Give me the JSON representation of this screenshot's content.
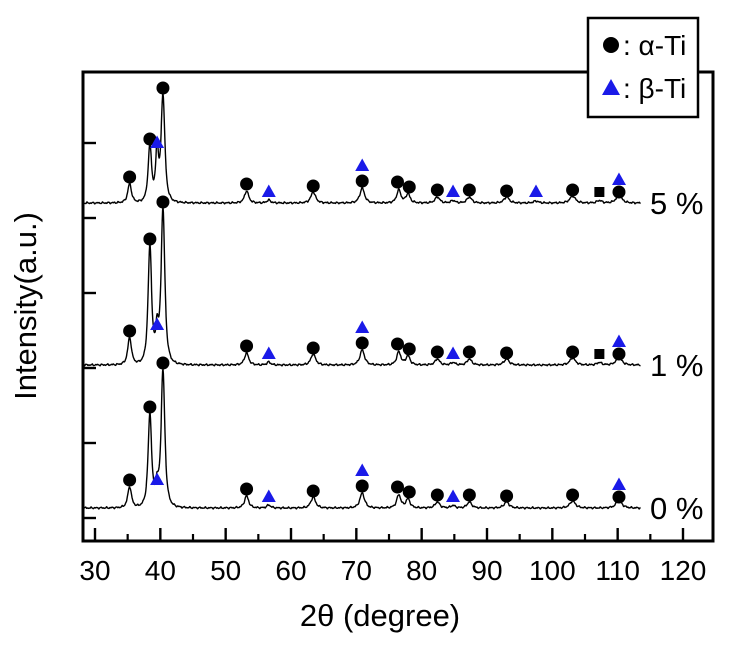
{
  "chart_data": {
    "type": "line",
    "title": "",
    "xlabel": "2θ (degree)",
    "ylabel": "Intensity(a.u.)",
    "x_ticks": [
      30,
      40,
      50,
      60,
      70,
      80,
      90,
      100,
      110,
      120
    ],
    "x_minor_ticks": [
      35,
      45,
      55,
      65,
      75,
      85,
      95,
      105,
      115
    ],
    "xlim": [
      28.2,
      124.6
    ],
    "y_axis": "arbitrary units (no numeric labels)",
    "grid": false,
    "line_color": "#000000",
    "alpha_color": "#000000",
    "beta_color": "#1a1ae8",
    "legend_position": "top-right",
    "legend": [
      {
        "marker": "circle",
        "color": "#000000",
        "text": ": α-Ti"
      },
      {
        "marker": "triangle",
        "color": "#1a1ae8",
        "text": ": β-Ti"
      }
    ],
    "marker_kinds": {
      "c": "alpha-Ti circle",
      "t": "beta-Ti triangle",
      "s": "unassigned square"
    },
    "peak_format": [
      "two_theta_deg",
      "intensity_au",
      "width_deg"
    ],
    "marker_format": [
      "two_theta_deg",
      "height_au_above_baseline",
      "kind"
    ],
    "series": [
      {
        "name": "5 %",
        "id": "5pct",
        "peaks": [
          [
            35.3,
            19,
            0.4
          ],
          [
            38.4,
            56,
            0.38
          ],
          [
            39.5,
            50,
            0.3
          ],
          [
            40.4,
            107,
            0.4
          ],
          [
            53.2,
            12,
            0.45
          ],
          [
            56.6,
            3,
            0.4
          ],
          [
            63.4,
            11,
            0.5
          ],
          [
            70.9,
            15,
            0.5
          ],
          [
            76.5,
            13,
            0.45
          ],
          [
            77.9,
            9,
            0.45
          ],
          [
            82.4,
            6,
            0.5
          ],
          [
            84.8,
            2.5,
            0.45
          ],
          [
            87.3,
            6,
            0.5
          ],
          [
            93.0,
            6,
            0.55
          ],
          [
            97.5,
            2,
            0.5
          ],
          [
            103.1,
            7,
            0.6
          ],
          [
            107.2,
            2.5,
            0.5
          ],
          [
            110.2,
            8,
            0.6
          ]
        ],
        "markers": [
          [
            35.3,
            26,
            "c"
          ],
          [
            38.4,
            64,
            "c"
          ],
          [
            39.5,
            60,
            "t"
          ],
          [
            40.4,
            115,
            "c"
          ],
          [
            53.2,
            19,
            "c"
          ],
          [
            56.6,
            11,
            "t"
          ],
          [
            63.4,
            17,
            "c"
          ],
          [
            70.9,
            22,
            "c"
          ],
          [
            70.9,
            37,
            "t"
          ],
          [
            76.3,
            21,
            "c"
          ],
          [
            78.1,
            16,
            "c"
          ],
          [
            82.4,
            13,
            "c"
          ],
          [
            84.8,
            11,
            "t"
          ],
          [
            87.3,
            13,
            "c"
          ],
          [
            93.0,
            12,
            "c"
          ],
          [
            97.5,
            11,
            "t"
          ],
          [
            103.1,
            13,
            "c"
          ],
          [
            107.2,
            11,
            "s"
          ],
          [
            110.2,
            11,
            "c"
          ],
          [
            110.2,
            23,
            "t"
          ]
        ]
      },
      {
        "name": "1 %",
        "id": "1pct",
        "peaks": [
          [
            35.3,
            27,
            0.4
          ],
          [
            38.4,
            118,
            0.38
          ],
          [
            39.5,
            30,
            0.3
          ],
          [
            40.4,
            155,
            0.4
          ],
          [
            53.2,
            12,
            0.45
          ],
          [
            56.6,
            3,
            0.4
          ],
          [
            63.4,
            11,
            0.5
          ],
          [
            70.9,
            15,
            0.5
          ],
          [
            76.5,
            13,
            0.45
          ],
          [
            77.9,
            9,
            0.45
          ],
          [
            82.4,
            6,
            0.5
          ],
          [
            84.8,
            2.5,
            0.45
          ],
          [
            87.3,
            6,
            0.5
          ],
          [
            93.0,
            6,
            0.55
          ],
          [
            103.1,
            7,
            0.6
          ],
          [
            107.2,
            2.5,
            0.5
          ],
          [
            110.2,
            8,
            0.6
          ]
        ],
        "markers": [
          [
            35.3,
            34,
            "c"
          ],
          [
            38.4,
            126,
            "c"
          ],
          [
            39.5,
            40,
            "t"
          ],
          [
            40.4,
            163,
            "c"
          ],
          [
            53.2,
            19,
            "c"
          ],
          [
            56.6,
            11,
            "t"
          ],
          [
            63.4,
            17,
            "c"
          ],
          [
            70.9,
            22,
            "c"
          ],
          [
            70.9,
            37,
            "t"
          ],
          [
            76.3,
            21,
            "c"
          ],
          [
            78.1,
            16,
            "c"
          ],
          [
            82.4,
            13,
            "c"
          ],
          [
            84.8,
            11,
            "t"
          ],
          [
            87.3,
            13,
            "c"
          ],
          [
            93.0,
            12,
            "c"
          ],
          [
            103.1,
            13,
            "c"
          ],
          [
            107.2,
            11,
            "s"
          ],
          [
            110.2,
            11,
            "c"
          ],
          [
            110.2,
            23,
            "t"
          ]
        ]
      },
      {
        "name": "0 %",
        "id": "0pct",
        "peaks": [
          [
            35.3,
            21,
            0.4
          ],
          [
            38.4,
            93,
            0.38
          ],
          [
            39.5,
            18,
            0.3
          ],
          [
            40.4,
            137,
            0.4
          ],
          [
            53.2,
            12,
            0.45
          ],
          [
            56.6,
            3,
            0.4
          ],
          [
            63.4,
            11,
            0.5
          ],
          [
            70.9,
            15,
            0.5
          ],
          [
            76.5,
            13,
            0.45
          ],
          [
            77.9,
            9,
            0.45
          ],
          [
            82.4,
            6,
            0.5
          ],
          [
            84.8,
            2.5,
            0.45
          ],
          [
            87.3,
            6,
            0.5
          ],
          [
            93.0,
            6,
            0.55
          ],
          [
            103.1,
            7,
            0.6
          ],
          [
            110.2,
            8,
            0.6
          ]
        ],
        "markers": [
          [
            35.3,
            28,
            "c"
          ],
          [
            38.4,
            101,
            "c"
          ],
          [
            39.5,
            28,
            "t"
          ],
          [
            40.4,
            145,
            "c"
          ],
          [
            53.2,
            19,
            "c"
          ],
          [
            56.6,
            11,
            "t"
          ],
          [
            63.4,
            17,
            "c"
          ],
          [
            70.9,
            22,
            "c"
          ],
          [
            70.9,
            37,
            "t"
          ],
          [
            76.3,
            21,
            "c"
          ],
          [
            78.1,
            16,
            "c"
          ],
          [
            82.4,
            13,
            "c"
          ],
          [
            84.8,
            11,
            "t"
          ],
          [
            87.3,
            13,
            "c"
          ],
          [
            93.0,
            12,
            "c"
          ],
          [
            103.1,
            13,
            "c"
          ],
          [
            110.2,
            11,
            "c"
          ],
          [
            110.2,
            23,
            "t"
          ]
        ]
      }
    ]
  }
}
